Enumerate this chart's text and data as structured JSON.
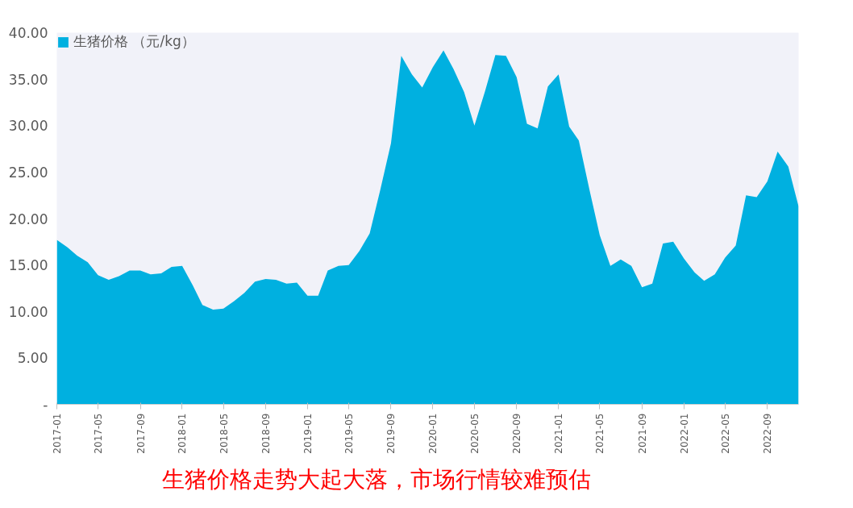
{
  "chart_data": {
    "type": "area",
    "x": [
      "2017-01",
      "2017-02",
      "2017-03",
      "2017-04",
      "2017-05",
      "2017-06",
      "2017-07",
      "2017-08",
      "2017-09",
      "2017-10",
      "2017-11",
      "2017-12",
      "2018-01",
      "2018-02",
      "2018-03",
      "2018-04",
      "2018-05",
      "2018-06",
      "2018-07",
      "2018-08",
      "2018-09",
      "2018-10",
      "2018-11",
      "2018-12",
      "2019-01",
      "2019-02",
      "2019-03",
      "2019-04",
      "2019-05",
      "2019-06",
      "2019-07",
      "2019-08",
      "2019-09",
      "2019-10",
      "2019-11",
      "2019-12",
      "2020-01",
      "2020-02",
      "2020-03",
      "2020-04",
      "2020-05",
      "2020-06",
      "2020-07",
      "2020-08",
      "2020-09",
      "2020-10",
      "2020-11",
      "2020-12",
      "2021-01",
      "2021-02",
      "2021-03",
      "2021-04",
      "2021-05",
      "2021-06",
      "2021-07",
      "2021-08",
      "2021-09",
      "2021-10",
      "2021-11",
      "2021-12",
      "2022-01",
      "2022-02",
      "2022-03",
      "2022-04",
      "2022-05",
      "2022-06",
      "2022-07",
      "2022-08",
      "2022-09",
      "2022-10",
      "2022-11",
      "2022-12"
    ],
    "series": [
      {
        "name": "生猪价格 （元/kg）",
        "color": "#00b0e0",
        "values": [
          17.7,
          16.9,
          16.0,
          15.3,
          13.9,
          13.4,
          13.8,
          14.4,
          14.4,
          14.0,
          14.1,
          14.8,
          14.9,
          12.8,
          10.7,
          10.2,
          10.3,
          11.1,
          12.0,
          13.2,
          13.5,
          13.4,
          13.0,
          13.1,
          11.7,
          11.7,
          14.4,
          14.9,
          15.0,
          16.5,
          18.4,
          23.1,
          28.1,
          37.5,
          35.5,
          34.1,
          36.3,
          38.1,
          36.1,
          33.6,
          30.0,
          33.7,
          37.6,
          37.5,
          35.2,
          30.2,
          29.7,
          34.2,
          35.5,
          29.9,
          28.4,
          23.1,
          18.2,
          14.9,
          15.6,
          14.9,
          12.6,
          13.0,
          17.3,
          17.5,
          15.7,
          14.2,
          13.3,
          14.0,
          15.8,
          17.1,
          22.5,
          22.3,
          24.0,
          27.2,
          25.6,
          21.3
        ]
      }
    ],
    "xlim": [
      "2017-01",
      "2022-12"
    ],
    "xticks": [
      "2017-01",
      "2017-05",
      "2017-09",
      "2018-01",
      "2018-05",
      "2018-09",
      "2019-01",
      "2019-05",
      "2019-09",
      "2020-01",
      "2020-05",
      "2020-09",
      "2021-01",
      "2021-05",
      "2021-09",
      "2022-01",
      "2022-05",
      "2022-09"
    ],
    "ylim": [
      0,
      40
    ],
    "yticks": [
      {
        "value": 0,
        "label": "-"
      },
      {
        "value": 5,
        "label": "5.00"
      },
      {
        "value": 10,
        "label": "10.00"
      },
      {
        "value": 15,
        "label": "15.00"
      },
      {
        "value": 20,
        "label": "20.00"
      },
      {
        "value": 25,
        "label": "25.00"
      },
      {
        "value": 30,
        "label": "30.00"
      },
      {
        "value": 35,
        "label": "35.00"
      },
      {
        "value": 40,
        "label": "40.00"
      }
    ],
    "grid": false,
    "legend": "top left",
    "annotations": [
      "生猪价格走势大起大落，市场行情较难预估"
    ]
  }
}
